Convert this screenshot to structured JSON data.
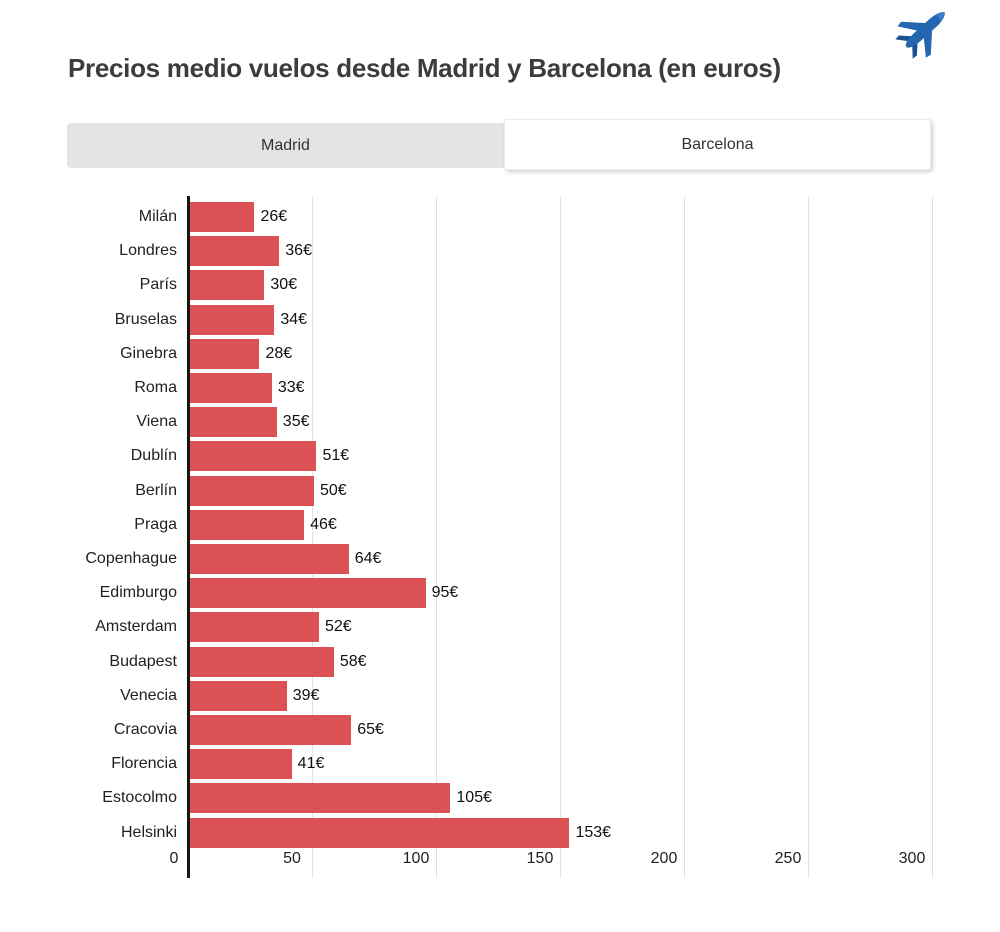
{
  "header": {
    "title": "Precios medio vuelos desde Madrid y Barcelona (en euros)",
    "icon": "airplane-icon",
    "icon_color": "#2566b0",
    "icon_color_dark": "#1b4f94"
  },
  "tabs": [
    {
      "label": "Madrid",
      "active": false
    },
    {
      "label": "Barcelona",
      "active": true
    }
  ],
  "chart_data": {
    "type": "bar",
    "orientation": "horizontal",
    "title": "Precios medio vuelos desde Madrid y Barcelona (en euros)",
    "categories": [
      "Milán",
      "Londres",
      "París",
      "Bruselas",
      "Ginebra",
      "Roma",
      "Viena",
      "Dublín",
      "Berlín",
      "Praga",
      "Copenhague",
      "Edimburgo",
      "Amsterdam",
      "Budapest",
      "Venecia",
      "Cracovia",
      "Florencia",
      "Estocolmo",
      "Helsinki"
    ],
    "values": [
      26,
      36,
      30,
      34,
      28,
      33,
      35,
      51,
      50,
      46,
      64,
      95,
      52,
      58,
      39,
      65,
      41,
      105,
      153
    ],
    "value_suffix": "€",
    "xlabel": "",
    "ylabel": "",
    "xlim": [
      0,
      300
    ],
    "xticks": [
      0,
      50,
      100,
      150,
      200,
      250,
      300
    ],
    "grid": true,
    "legend": false,
    "bar_color": "#dc5254",
    "gridline_color": "#e2e2e2",
    "axis_color": "#161616"
  }
}
